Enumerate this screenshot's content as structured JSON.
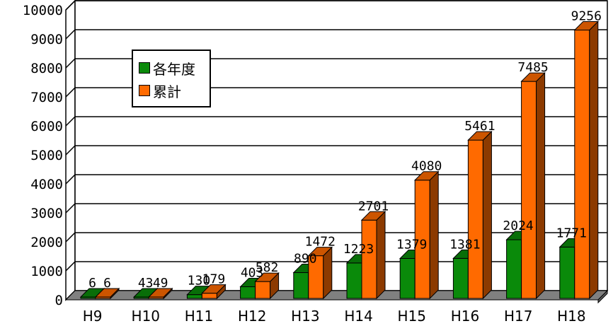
{
  "chart_data": {
    "type": "bar",
    "style": "3d-clustered",
    "categories": [
      "H9",
      "H10",
      "H11",
      "H12",
      "H13",
      "H14",
      "H15",
      "H16",
      "H17",
      "H18"
    ],
    "series": [
      {
        "name": "各年度",
        "color": "#0a8a0a",
        "values": [
          6,
          43,
          130,
          403,
          890,
          1223,
          1379,
          1381,
          2024,
          1771
        ]
      },
      {
        "name": "累計",
        "color": "#ff6a00",
        "values": [
          6,
          49,
          179,
          582,
          1472,
          2701,
          4080,
          5461,
          7485,
          9256
        ]
      }
    ],
    "yticks": [
      "0",
      "1000",
      "2000",
      "3000",
      "4000",
      "5000",
      "6000",
      "7000",
      "8000",
      "9000",
      "10000"
    ],
    "ylim": [
      0,
      10000
    ],
    "grid": true,
    "legend_position": "top-left"
  }
}
